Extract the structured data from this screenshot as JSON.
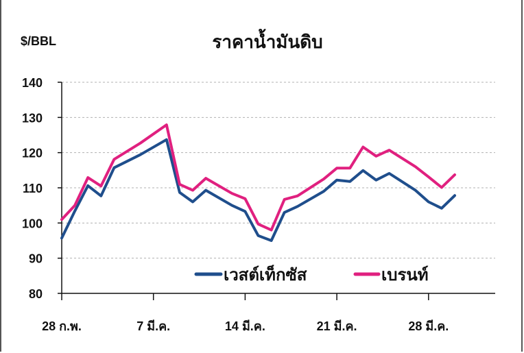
{
  "chart_data": {
    "type": "line",
    "title": "ราคาน้ำมันดิบ",
    "ylabel": "$/BBL",
    "xlabel": "",
    "ylim": [
      80,
      140
    ],
    "yticks": [
      80,
      90,
      100,
      110,
      120,
      130,
      140
    ],
    "grid": true,
    "legend_position": "bottom-center",
    "x_index_range": [
      0,
      31
    ],
    "x_tick_labels": [
      {
        "index": 0,
        "label": "28 ก.พ."
      },
      {
        "index": 7,
        "label": "7 มี.ค."
      },
      {
        "index": 14,
        "label": "14 มี.ค."
      },
      {
        "index": 21,
        "label": "21 มี.ค."
      },
      {
        "index": 28,
        "label": "28 มี.ค."
      }
    ],
    "series": [
      {
        "name": "เวสต์เท็กซัส",
        "color": "#1f4e8c",
        "points": [
          [
            0,
            95.7
          ],
          [
            1,
            103.4
          ],
          [
            2,
            110.6
          ],
          [
            3,
            107.7
          ],
          [
            4,
            115.7
          ],
          [
            6,
            119.4
          ],
          [
            8,
            123.7
          ],
          [
            9,
            108.7
          ],
          [
            10,
            106.0
          ],
          [
            11,
            109.3
          ],
          [
            13,
            105.0
          ],
          [
            14,
            103.3
          ],
          [
            15,
            96.4
          ],
          [
            16,
            95.0
          ],
          [
            17,
            103.0
          ],
          [
            18,
            104.7
          ],
          [
            20,
            109.0
          ],
          [
            21,
            112.2
          ],
          [
            22,
            111.8
          ],
          [
            23,
            114.9
          ],
          [
            24,
            112.2
          ],
          [
            25,
            114.1
          ],
          [
            27,
            109.3
          ],
          [
            28,
            106.0
          ],
          [
            29,
            104.2
          ],
          [
            30,
            107.8
          ]
        ]
      },
      {
        "name": "เบรนท์",
        "color": "#e0207f",
        "points": [
          [
            0,
            101.0
          ],
          [
            1,
            105.0
          ],
          [
            2,
            112.9
          ],
          [
            3,
            110.5
          ],
          [
            4,
            118.1
          ],
          [
            6,
            122.7
          ],
          [
            8,
            127.9
          ],
          [
            9,
            111.0
          ],
          [
            10,
            109.3
          ],
          [
            11,
            112.7
          ],
          [
            13,
            108.4
          ],
          [
            14,
            106.9
          ],
          [
            15,
            99.7
          ],
          [
            16,
            98.0
          ],
          [
            17,
            106.7
          ],
          [
            18,
            107.7
          ],
          [
            20,
            112.5
          ],
          [
            21,
            115.6
          ],
          [
            22,
            115.6
          ],
          [
            23,
            121.6
          ],
          [
            24,
            119.0
          ],
          [
            25,
            120.7
          ],
          [
            27,
            116.0
          ],
          [
            28,
            113.1
          ],
          [
            29,
            110.1
          ],
          [
            30,
            113.7
          ]
        ]
      }
    ]
  }
}
